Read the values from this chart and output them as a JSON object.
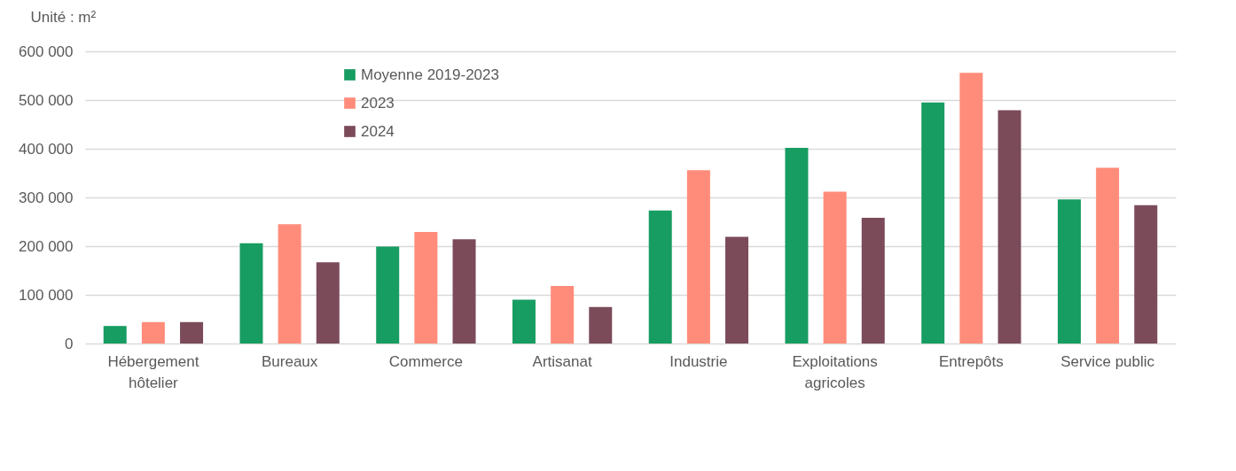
{
  "chart_data": {
    "type": "bar",
    "ylabel": "Unité : m²",
    "categories": [
      "Hébergement hôtelier",
      "Bureaux",
      "Commerce",
      "Artisanat",
      "Industrie",
      "Exploitations agricoles",
      "Entrepôts",
      "Service public"
    ],
    "series": [
      {
        "name": "Moyenne 2019-2023",
        "color": "#179c62",
        "values": [
          36000,
          206000,
          199000,
          90000,
          273000,
          402000,
          495000,
          296000
        ]
      },
      {
        "name": "2023",
        "color": "#ff8c7a",
        "values": [
          44000,
          245000,
          229000,
          118000,
          356000,
          312000,
          556000,
          361000
        ]
      },
      {
        "name": "2024",
        "color": "#7b4b5a",
        "values": [
          44000,
          167000,
          214000,
          75000,
          219000,
          258000,
          479000,
          284000
        ]
      }
    ],
    "ylim": [
      0,
      600000
    ],
    "yticks": [
      0,
      {
        "value": 100000,
        "label": "100 000"
      },
      {
        "value": 200000,
        "label": "200 000"
      },
      {
        "value": 300000,
        "label": "300 000"
      },
      {
        "value": 400000,
        "label": "400 000"
      },
      {
        "value": 500000,
        "label": "500 000"
      },
      {
        "value": 600000,
        "label": "600 000"
      }
    ],
    "grid": "y",
    "legend": "top left"
  }
}
